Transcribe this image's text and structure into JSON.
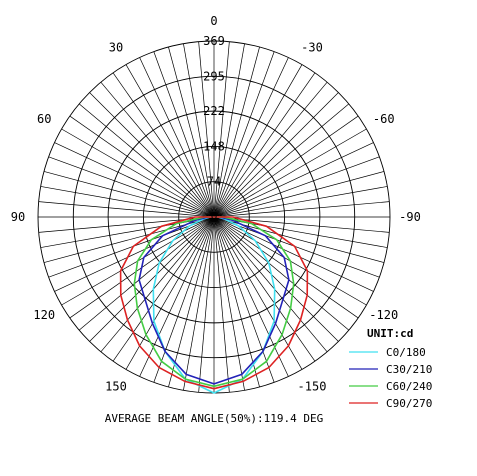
{
  "chart_data": {
    "type": "polar",
    "unit_label": "UNIT:cd",
    "radial_ticks": [
      "74",
      "148",
      "222",
      "295",
      "369"
    ],
    "radial_tick_values": [
      74,
      148,
      222,
      295,
      369
    ],
    "r_max": 369,
    "center_label": "0",
    "angle_labels": [
      {
        "deg": 180,
        "text": "0"
      },
      {
        "deg": 150,
        "text": "-30"
      },
      {
        "deg": 120,
        "text": "-60"
      },
      {
        "deg": 90,
        "text": "-90"
      },
      {
        "deg": 60,
        "text": "-120"
      },
      {
        "deg": 30,
        "text": "-150"
      },
      {
        "deg": -30,
        "text": "150"
      },
      {
        "deg": -60,
        "text": "120"
      },
      {
        "deg": -90,
        "text": "90"
      },
      {
        "deg": -120,
        "text": "60"
      },
      {
        "deg": -150,
        "text": "30"
      }
    ],
    "angle_step": 5,
    "series": [
      {
        "name": "C0/180",
        "color": "#40e0f0",
        "angles": [
          0,
          10,
          20,
          30,
          40,
          50,
          60,
          70,
          80,
          90
        ],
        "values": [
          369,
          345,
          300,
          252,
          198,
          150,
          100,
          55,
          22,
          8
        ]
      },
      {
        "name": "C30/210",
        "color": "#2222b8",
        "angles": [
          0,
          10,
          20,
          30,
          40,
          50,
          60,
          70,
          80,
          90
        ],
        "values": [
          350,
          335,
          300,
          258,
          225,
          205,
          170,
          115,
          40,
          12
        ]
      },
      {
        "name": "C60/240",
        "color": "#44cc44",
        "angles": [
          0,
          10,
          20,
          30,
          40,
          50,
          60,
          70,
          80,
          90
        ],
        "values": [
          355,
          345,
          322,
          285,
          250,
          218,
          185,
          140,
          80,
          20
        ]
      },
      {
        "name": "C90/270",
        "color": "#dd2222",
        "angles": [
          0,
          10,
          20,
          30,
          40,
          50,
          60,
          70,
          80,
          90
        ],
        "values": [
          360,
          350,
          336,
          312,
          282,
          255,
          226,
          180,
          112,
          40
        ]
      }
    ],
    "footer": "AVERAGE BEAM ANGLE(50%):119.4 DEG"
  }
}
